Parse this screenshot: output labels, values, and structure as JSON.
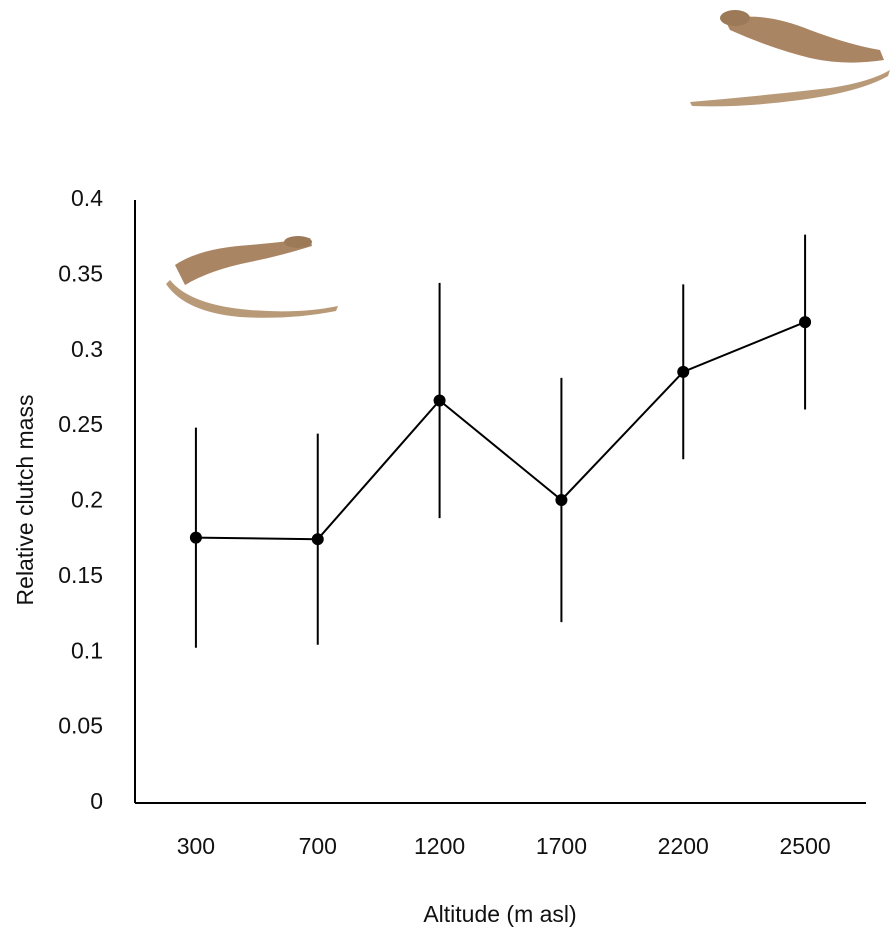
{
  "chart_data": {
    "type": "line",
    "x_label": "Altitude (m asl)",
    "y_label": "Relative clutch mass",
    "categories": [
      "300",
      "700",
      "1200",
      "1700",
      "2200",
      "2500"
    ],
    "values": [
      0.176,
      0.175,
      0.267,
      0.201,
      0.286,
      0.319
    ],
    "errors": [
      0.073,
      0.07,
      0.078,
      0.081,
      0.058,
      0.058
    ],
    "color": "#000000",
    "ylim": [
      0,
      0.4
    ],
    "yticks": [
      0,
      0.05,
      0.1,
      0.15,
      0.2,
      0.25,
      0.3,
      0.35,
      0.4
    ],
    "grid": false
  }
}
